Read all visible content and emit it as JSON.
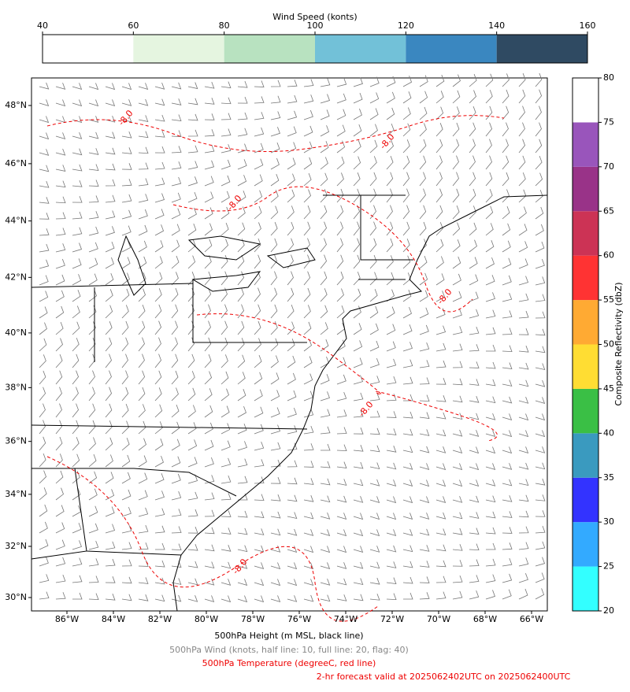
{
  "wind_colorbar": {
    "label": "Wind Speed (konts)",
    "lim": [
      40,
      160
    ],
    "ticks": [
      40,
      60,
      80,
      100,
      120,
      140,
      160
    ],
    "colors": [
      "#ffffff",
      "#e5f5e0",
      "#b8e2c0",
      "#72c1d8",
      "#3a87c0",
      "#2f4a62"
    ]
  },
  "reflectivity_colorbar": {
    "label": "Composite Reflectivity (dbZ)",
    "lim": [
      20,
      80
    ],
    "ticks": [
      20,
      25,
      30,
      35,
      40,
      45,
      50,
      55,
      60,
      65,
      70,
      75,
      80
    ],
    "colors": [
      "#33ffff",
      "#33aaff",
      "#3333ff",
      "#3a9abf",
      "#3abf45",
      "#ffdd33",
      "#ffaa33",
      "#ff3333",
      "#cc3355",
      "#993388",
      "#9955bb",
      "#ffffff"
    ]
  },
  "map": {
    "lon_ticks": [
      {
        "value": -86,
        "label": "86°W"
      },
      {
        "value": -84,
        "label": "84°W"
      },
      {
        "value": -82,
        "label": "82°W"
      },
      {
        "value": -80,
        "label": "80°W"
      },
      {
        "value": -78,
        "label": "78°W"
      },
      {
        "value": -76,
        "label": "76°W"
      },
      {
        "value": -74,
        "label": "74°W"
      },
      {
        "value": -72,
        "label": "72°W"
      },
      {
        "value": -70,
        "label": "70°W"
      },
      {
        "value": -68,
        "label": "68°W"
      },
      {
        "value": -66,
        "label": "66°W"
      }
    ],
    "lat_ticks": [
      {
        "value": 48,
        "label": "48°N"
      },
      {
        "value": 46,
        "label": "46°N"
      },
      {
        "value": 44,
        "label": "44°N"
      },
      {
        "value": 42,
        "label": "42°N"
      },
      {
        "value": 40,
        "label": "40°N"
      },
      {
        "value": 38,
        "label": "38°N"
      },
      {
        "value": 36,
        "label": "36°N"
      },
      {
        "value": 34,
        "label": "34°N"
      },
      {
        "value": 32,
        "label": "32°N"
      },
      {
        "value": 30,
        "label": "30°N"
      }
    ],
    "contour_labels": [
      "-8.0",
      "-8.0",
      "-8.0",
      "-8.0",
      "-8.0",
      "-8.0"
    ]
  },
  "captions": [
    "500hPa Height (m MSL, black line)",
    "500hPa Wind (knots, half line: 10, full line: 20, flag: 40)",
    "500hPa Temperature (degreeC, red line)",
    "2-hr forecast valid at 2025062402UTC on 2025062400UTC"
  ]
}
